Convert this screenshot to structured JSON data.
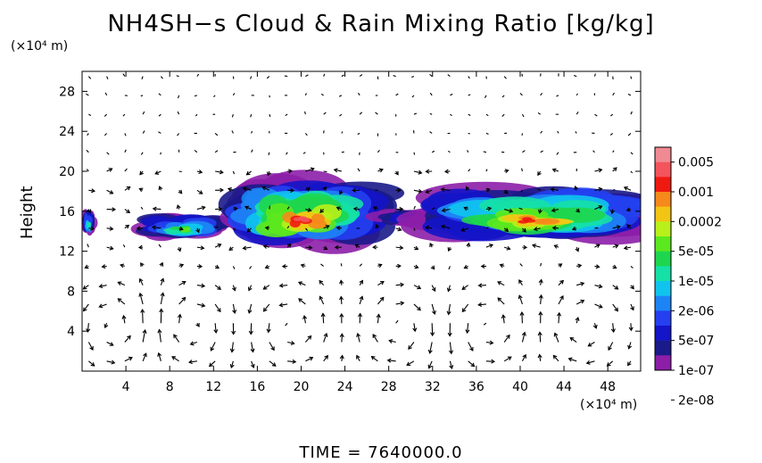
{
  "chart_data": {
    "type": "heatmap",
    "title": "NH4SH−s Cloud & Rain Mixing Ratio [kg/kg]",
    "ylabel": "Height",
    "y_unit": "(×10⁴ m)",
    "x_unit": "(×10⁴ m)",
    "footer": "TIME  =  7640000.0",
    "xlim": [
      0,
      51
    ],
    "ylim": [
      0,
      30
    ],
    "x_ticks": [
      4,
      8,
      12,
      16,
      20,
      24,
      28,
      32,
      36,
      40,
      44,
      48
    ],
    "y_ticks": [
      4,
      8,
      12,
      16,
      20,
      24,
      28
    ],
    "colorbar": {
      "labels": [
        "0.005",
        "0.001",
        "0.0002",
        "5e-05",
        "1e-05",
        "2e-06",
        "5e-07",
        "1e-07",
        "2e-08"
      ],
      "colors": [
        "#f08a92",
        "#f4545c",
        "#ee1a10",
        "#f5891b",
        "#f2c514",
        "#b9f01a",
        "#5ce81e",
        "#1ed64e",
        "#15e0a6",
        "#10c4ee",
        "#1d84f5",
        "#2440f0",
        "#1414c8",
        "#1a1a8a",
        "#8c1ea8"
      ]
    },
    "cloud_regions": [
      {
        "x_range": [
          0,
          1.2
        ],
        "y_range": [
          13.5,
          16.3
        ],
        "peak_level": 6
      },
      {
        "x_range": [
          5.5,
          13
        ],
        "y_range": [
          13.2,
          15.8
        ],
        "peak_level": 8
      },
      {
        "x_range": [
          13.5,
          27
        ],
        "y_range": [
          12.5,
          19.5
        ],
        "peak_level": 13
      },
      {
        "x_range": [
          27,
          32
        ],
        "y_range": [
          14.5,
          16.3
        ],
        "peak_level": 3
      },
      {
        "x_range": [
          31,
          51
        ],
        "y_range": [
          13,
          18.6
        ],
        "peak_level": 12
      }
    ]
  }
}
